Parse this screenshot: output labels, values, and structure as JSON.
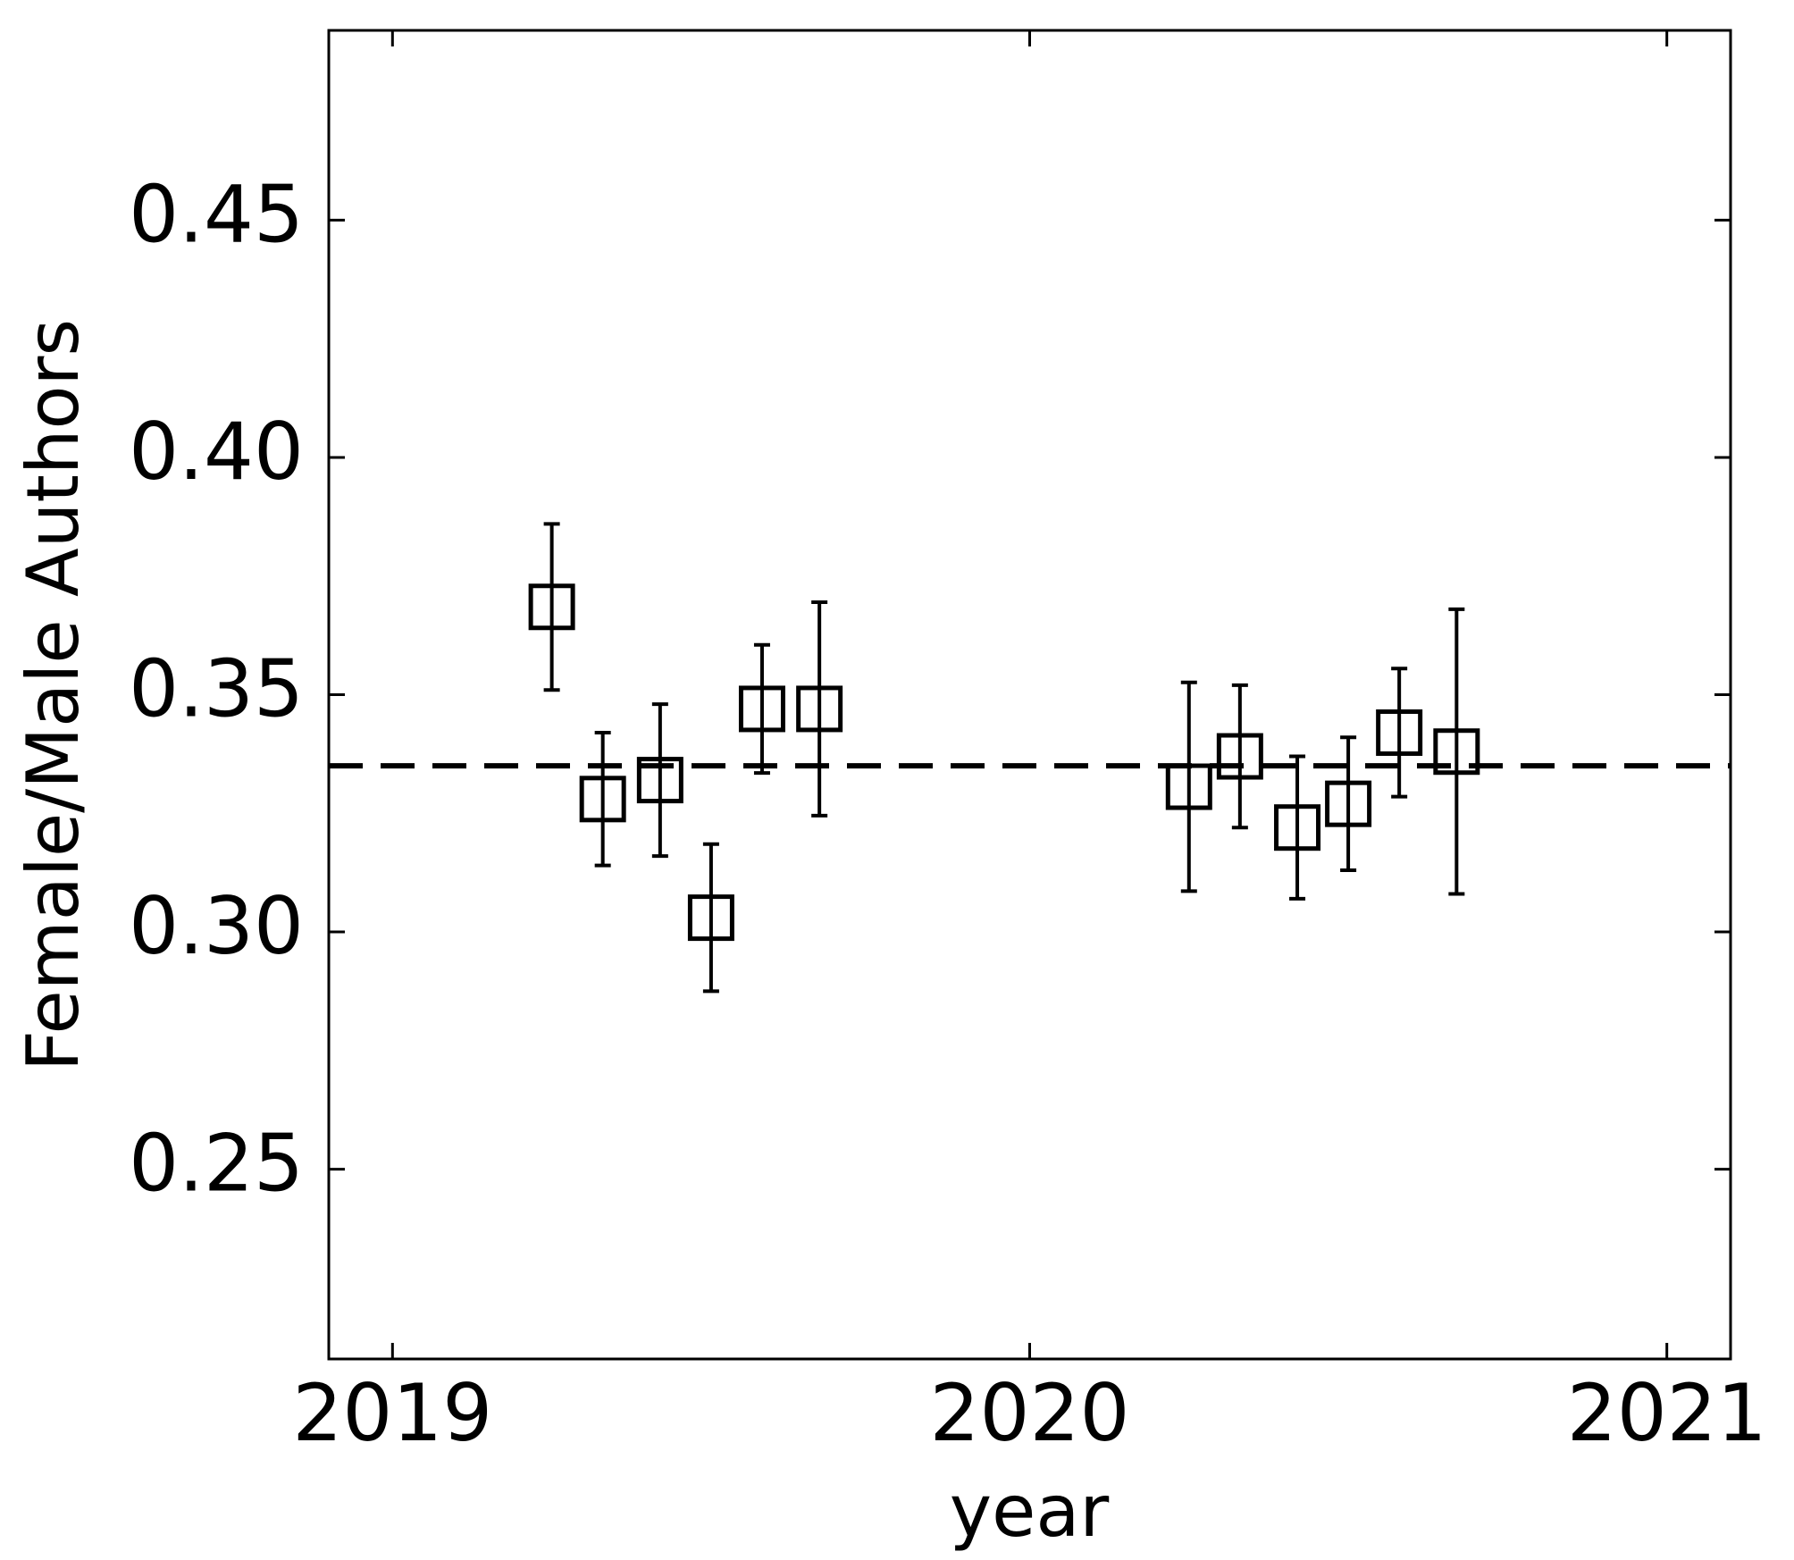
{
  "chart_data": {
    "type": "scatter",
    "xlabel": "year",
    "ylabel": "Female/Male Authors",
    "x": [
      2019.25,
      2019.33,
      2019.42,
      2019.5,
      2019.58,
      2019.67,
      2020.25,
      2020.33,
      2020.42,
      2020.5,
      2020.58,
      2020.67
    ],
    "values": [
      0.3685,
      0.328,
      0.332,
      0.303,
      0.347,
      0.347,
      0.3306,
      0.337,
      0.322,
      0.327,
      0.342,
      0.338
    ],
    "errors": [
      0.0175,
      0.014,
      0.016,
      0.0155,
      0.0135,
      0.0225,
      0.022,
      0.015,
      0.015,
      0.014,
      0.0135,
      0.03
    ],
    "color": "#000000",
    "marker": "square",
    "reference_line": {
      "y": 0.335,
      "style": "dashed"
    },
    "xlim": [
      2018.9,
      2021.1
    ],
    "xticks": [
      2019,
      2020,
      2021
    ],
    "ylim": [
      0.21,
      0.49
    ],
    "yticks": [
      0.25,
      {
        "value": 0.3,
        "label": "0.30"
      },
      0.35,
      {
        "value": 0.4,
        "label": "0.40"
      },
      0.45
    ],
    "grid": false
  }
}
